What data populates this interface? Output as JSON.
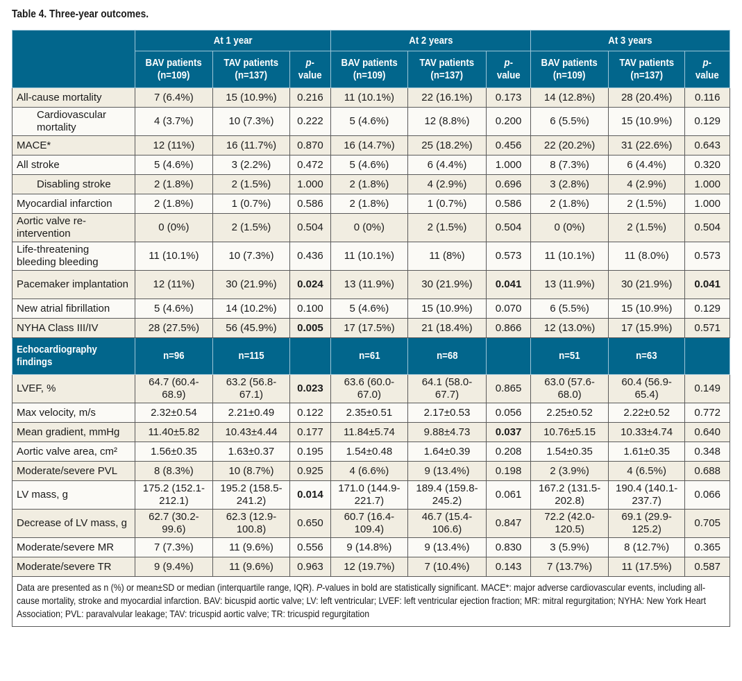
{
  "caption": "Table 4. Three-year outcomes.",
  "header": {
    "periods": [
      "At 1 year",
      "At 2 years",
      "At 3 years"
    ],
    "sub_columns": [
      {
        "line1": "BAV patients",
        "line2": "(n=109)"
      },
      {
        "line1": "TAV patients",
        "line2": "(n=137)"
      },
      {
        "p_italic": "p",
        "p_rest": "-value"
      }
    ]
  },
  "clinical_rows": [
    {
      "label": "All-cause mortality",
      "indent": false,
      "values": [
        "7 (6.4%)",
        "15 (10.9%)",
        "0.216",
        "11 (10.1%)",
        "22 (16.1%)",
        "0.173",
        "14 (12.8%)",
        "28 (20.4%)",
        "0.116"
      ],
      "bold": []
    },
    {
      "label": "Cardiovascular mortality",
      "indent": true,
      "values": [
        "4 (3.7%)",
        "10 (7.3%)",
        "0.222",
        "5 (4.6%)",
        "12 (8.8%)",
        "0.200",
        "6 (5.5%)",
        "15 (10.9%)",
        "0.129"
      ],
      "bold": []
    },
    {
      "label": "MACE*",
      "indent": false,
      "values": [
        "12 (11%)",
        "16 (11.7%)",
        "0.870",
        "16 (14.7%)",
        "25 (18.2%)",
        "0.456",
        "22 (20.2%)",
        "31 (22.6%)",
        "0.643"
      ],
      "bold": []
    },
    {
      "label": "All stroke",
      "indent": false,
      "values": [
        "5 (4.6%)",
        "3 (2.2%)",
        "0.472",
        "5 (4.6%)",
        "6 (4.4%)",
        "1.000",
        "8 (7.3%)",
        "6 (4.4%)",
        "0.320"
      ],
      "bold": []
    },
    {
      "label": "Disabling stroke",
      "indent": true,
      "values": [
        "2 (1.8%)",
        "2 (1.5%)",
        "1.000",
        "2 (1.8%)",
        "4 (2.9%)",
        "0.696",
        "3 (2.8%)",
        "4 (2.9%)",
        "1.000"
      ],
      "bold": []
    },
    {
      "label": "Myocardial infarction",
      "indent": false,
      "values": [
        "2 (1.8%)",
        "1 (0.7%)",
        "0.586",
        "2 (1.8%)",
        "1 (0.7%)",
        "0.586",
        "2 (1.8%)",
        "2 (1.5%)",
        "1.000"
      ],
      "bold": []
    },
    {
      "label": "Aortic valve re-intervention",
      "indent": false,
      "values": [
        "0 (0%)",
        "2 (1.5%)",
        "0.504",
        "0 (0%)",
        "2 (1.5%)",
        "0.504",
        "0 (0%)",
        "2 (1.5%)",
        "0.504"
      ],
      "bold": []
    },
    {
      "label": "Life-threatening bleeding bleeding",
      "indent": false,
      "values": [
        "11 (10.1%)",
        "10 (7.3%)",
        "0.436",
        "11 (10.1%)",
        "11 (8%)",
        "0.573",
        "11 (10.1%)",
        "11 (8.0%)",
        "0.573"
      ],
      "bold": []
    },
    {
      "label": "Pacemaker implantation",
      "indent": false,
      "values": [
        "12 (11%)",
        "30 (21.9%)",
        "0.024",
        "13 (11.9%)",
        "30 (21.9%)",
        "0.041",
        "13 (11.9%)",
        "30 (21.9%)",
        "0.041"
      ],
      "bold": [
        2,
        5,
        8
      ]
    },
    {
      "label": "New atrial fibrillation",
      "indent": false,
      "values": [
        "5 (4.6%)",
        "14 (10.2%)",
        "0.100",
        "5 (4.6%)",
        "15 (10.9%)",
        "0.070",
        "6 (5.5%)",
        "15 (10.9%)",
        "0.129"
      ],
      "bold": []
    },
    {
      "label": "NYHA Class III/IV",
      "indent": false,
      "values": [
        "28 (27.5%)",
        "56 (45.9%)",
        "0.005",
        "17 (17.5%)",
        "21 (18.4%)",
        "0.866",
        "12 (13.0%)",
        "17 (15.9%)",
        "0.571"
      ],
      "bold": [
        2
      ]
    }
  ],
  "echo_section": {
    "label": "Echocardiography findings",
    "counts": [
      "n=96",
      "n=115",
      "",
      "n=61",
      "n=68",
      "",
      "n=51",
      "n=63",
      ""
    ]
  },
  "echo_rows": [
    {
      "label": "LVEF, %",
      "values": [
        "64.7 (60.4-68.9)",
        "63.2 (56.8-67.1)",
        "0.023",
        "63.6 (60.0-67.0)",
        "64.1 (58.0-67.7)",
        "0.865",
        "63.0 (57.6-68.0)",
        "60.4 (56.9-65.4)",
        "0.149"
      ],
      "bold": [
        2
      ]
    },
    {
      "label": "Max velocity, m/s",
      "values": [
        "2.32±0.54",
        "2.21±0.49",
        "0.122",
        "2.35±0.51",
        "2.17±0.53",
        "0.056",
        "2.25±0.52",
        "2.22±0.52",
        "0.772"
      ],
      "bold": []
    },
    {
      "label": "Mean gradient, mmHg",
      "values": [
        "11.40±5.82",
        "10.43±4.44",
        "0.177",
        "11.84±5.74",
        "9.88±4.73",
        "0.037",
        "10.76±5.15",
        "10.33±4.74",
        "0.640"
      ],
      "bold": [
        5
      ]
    },
    {
      "label": "Aortic valve area, cm²",
      "values": [
        "1.56±0.35",
        "1.63±0.37",
        "0.195",
        "1.54±0.48",
        "1.64±0.39",
        "0.208",
        "1.54±0.35",
        "1.61±0.35",
        "0.348"
      ],
      "bold": []
    },
    {
      "label": "Moderate/severe PVL",
      "values": [
        "8 (8.3%)",
        "10 (8.7%)",
        "0.925",
        "4 (6.6%)",
        "9 (13.4%)",
        "0.198",
        "2 (3.9%)",
        "4 (6.5%)",
        "0.688"
      ],
      "bold": []
    },
    {
      "label": "LV mass, g",
      "values": [
        "175.2 (152.1-212.1)",
        "195.2 (158.5-241.2)",
        "0.014",
        "171.0 (144.9-221.7)",
        "189.4 (159.8-245.2)",
        "0.061",
        "167.2 (131.5-202.8)",
        "190.4 (140.1-237.7)",
        "0.066"
      ],
      "bold": [
        2
      ]
    },
    {
      "label": "Decrease of LV mass, g",
      "values": [
        "62.7 (30.2-99.6)",
        "62.3 (12.9-100.8)",
        "0.650",
        "60.7 (16.4-109.4)",
        "46.7 (15.4-106.6)",
        "0.847",
        "72.2 (42.0-120.5)",
        "69.1 (29.9-125.2)",
        "0.705"
      ],
      "bold": []
    },
    {
      "label": "Moderate/severe MR",
      "values": [
        "7 (7.3%)",
        "11 (9.6%)",
        "0.556",
        "9 (14.8%)",
        "9 (13.4%)",
        "0.830",
        "3 (5.9%)",
        "8 (12.7%)",
        "0.365"
      ],
      "bold": []
    },
    {
      "label": "Moderate/severe TR",
      "values": [
        "9 (9.4%)",
        "11 (9.6%)",
        "0.963",
        "12 (19.7%)",
        "7 (10.4%)",
        "0.143",
        "7 (13.7%)",
        "11 (17.5%)",
        "0.587"
      ],
      "bold": []
    }
  ],
  "footnote": {
    "part1": "Data are presented as n (%) or mean±SD or median (interquartile range, IQR). ",
    "p_italic": "P",
    "part2": "-values in bold are statistically significant. MACE*: major adverse cardiovascular events, including all-cause mortality, stroke and myocardial infarction. BAV: bicuspid aortic valve; LV: left ventricular; LVEF: left ventricular ejection fraction; MR: mitral regurgitation; NYHA: New York Heart Association; PVL: paravalvular leakage; TAV: tricuspid aortic valve; TR: tricuspid regurgitation"
  }
}
